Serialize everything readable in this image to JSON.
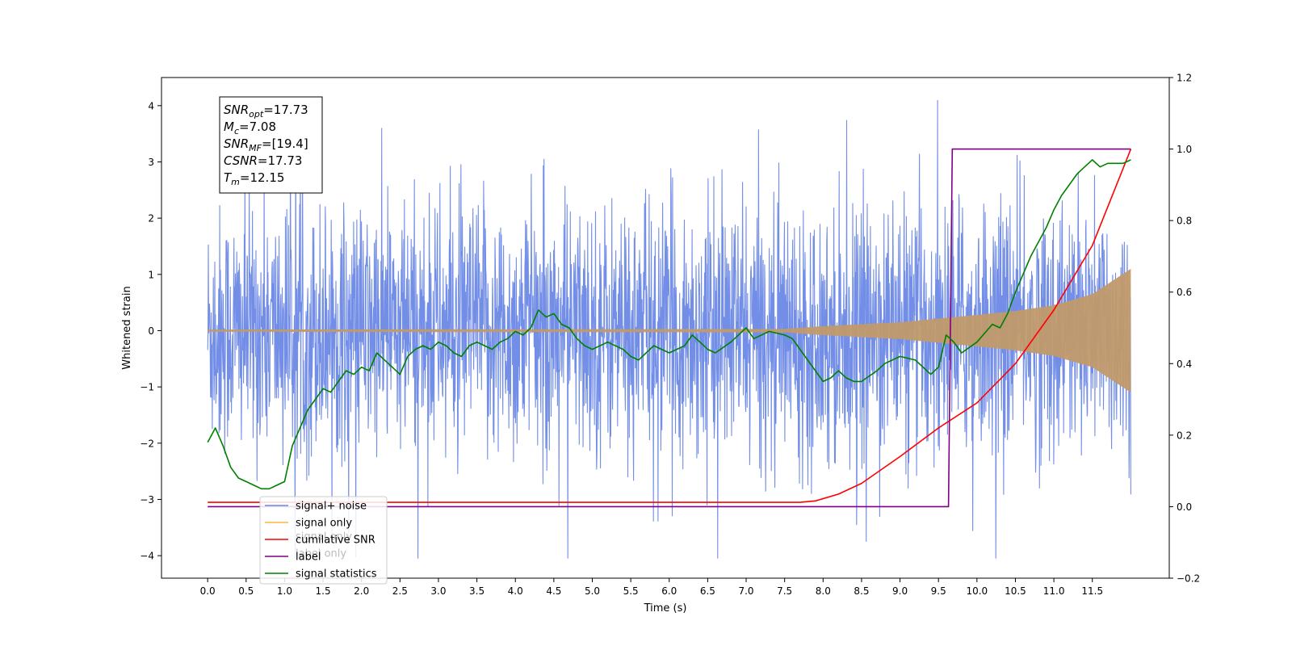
{
  "chart_data": {
    "type": "line",
    "xlabel": "Time (s)",
    "ylabel_left": "Whitened strain",
    "ylabel_right": "",
    "xlim": [
      -0.6,
      12.5
    ],
    "ylim_left": [
      -4.4,
      4.5
    ],
    "ylim_right": [
      -0.2,
      1.2
    ],
    "x_ticks": [
      "0.0",
      "0.5",
      "1.0",
      "1.5",
      "2.0",
      "2.5",
      "3.0",
      "3.5",
      "4.0",
      "4.5",
      "5.0",
      "5.5",
      "6.0",
      "6.5",
      "7.0",
      "7.5",
      "8.0",
      "8.5",
      "9.0",
      "9.5",
      "10.0",
      "10.5",
      "11.0",
      "11.5"
    ],
    "y_ticks_left": [
      "4",
      "3",
      "2",
      "1",
      "0",
      "−1",
      "−2",
      "−3",
      "−4"
    ],
    "y_ticks_right": [
      "1.2",
      "1.0",
      "0.8",
      "0.6",
      "0.4",
      "0.2",
      "0.0",
      "−0.2"
    ],
    "annotation": {
      "lines": [
        {
          "base": "SNR",
          "sub": "opt",
          "value": "=17.73"
        },
        {
          "base": "M",
          "sub": "c",
          "value": "=7.08"
        },
        {
          "base": "SNR",
          "sub": "MF",
          "value": "=[19.4]"
        },
        {
          "base": "CSNR",
          "sub": "",
          "value": "=17.73"
        },
        {
          "base": "T",
          "sub": "m",
          "value": "=12.15"
        }
      ]
    },
    "legend": {
      "position": "lower-left",
      "entries": [
        {
          "label": "signal+ noise",
          "color": "#6b88e6"
        },
        {
          "label": "signal only",
          "color": "#ffb347"
        },
        {
          "label": "cumilative SNR",
          "color": "#ff0000"
        },
        {
          "label": "label",
          "color": "#800080"
        },
        {
          "label": "signal statistics",
          "color": "#008000"
        }
      ],
      "hidden_text": [
        "signal only",
        "label only"
      ]
    },
    "series": [
      {
        "name": "signal+ noise",
        "axis": "left",
        "color": "#6b88e6",
        "description": "white noise envelope, amplitude ~2.8",
        "t_start": 0.0,
        "t_end": 12.0
      },
      {
        "name": "signal only",
        "axis": "left",
        "color": "#c19a6b",
        "envelope_points": [
          [
            0.0,
            0.02
          ],
          [
            7.5,
            0.03
          ],
          [
            8.0,
            0.08
          ],
          [
            9.0,
            0.15
          ],
          [
            10.0,
            0.28
          ],
          [
            10.5,
            0.35
          ],
          [
            11.0,
            0.45
          ],
          [
            11.5,
            0.65
          ],
          [
            12.0,
            1.1
          ]
        ]
      },
      {
        "name": "cumilative SNR",
        "axis": "right",
        "color": "#ff0000",
        "points": [
          [
            0.0,
            0.012
          ],
          [
            7.7,
            0.012
          ],
          [
            7.9,
            0.016
          ],
          [
            8.2,
            0.035
          ],
          [
            8.5,
            0.065
          ],
          [
            9.0,
            0.14
          ],
          [
            9.5,
            0.22
          ],
          [
            10.0,
            0.29
          ],
          [
            10.5,
            0.4
          ],
          [
            11.0,
            0.55
          ],
          [
            11.5,
            0.73
          ],
          [
            12.0,
            1.0
          ]
        ]
      },
      {
        "name": "label",
        "axis": "right",
        "color": "#800080",
        "points": [
          [
            0.0,
            0.0
          ],
          [
            9.63,
            0.0
          ],
          [
            9.68,
            1.0
          ],
          [
            12.0,
            1.0
          ]
        ]
      },
      {
        "name": "signal statistics",
        "axis": "right",
        "color": "#008000",
        "points": [
          [
            0.0,
            0.18
          ],
          [
            0.1,
            0.22
          ],
          [
            0.2,
            0.17
          ],
          [
            0.3,
            0.11
          ],
          [
            0.4,
            0.08
          ],
          [
            0.5,
            0.07
          ],
          [
            0.6,
            0.06
          ],
          [
            0.7,
            0.05
          ],
          [
            0.8,
            0.05
          ],
          [
            0.9,
            0.06
          ],
          [
            1.0,
            0.07
          ],
          [
            1.05,
            0.12
          ],
          [
            1.1,
            0.17
          ],
          [
            1.2,
            0.22
          ],
          [
            1.3,
            0.27
          ],
          [
            1.4,
            0.3
          ],
          [
            1.5,
            0.33
          ],
          [
            1.6,
            0.32
          ],
          [
            1.7,
            0.35
          ],
          [
            1.8,
            0.38
          ],
          [
            1.9,
            0.37
          ],
          [
            2.0,
            0.39
          ],
          [
            2.1,
            0.38
          ],
          [
            2.2,
            0.43
          ],
          [
            2.3,
            0.41
          ],
          [
            2.4,
            0.39
          ],
          [
            2.5,
            0.37
          ],
          [
            2.6,
            0.42
          ],
          [
            2.7,
            0.44
          ],
          [
            2.8,
            0.45
          ],
          [
            2.9,
            0.44
          ],
          [
            3.0,
            0.46
          ],
          [
            3.1,
            0.45
          ],
          [
            3.2,
            0.43
          ],
          [
            3.3,
            0.42
          ],
          [
            3.4,
            0.45
          ],
          [
            3.5,
            0.46
          ],
          [
            3.6,
            0.45
          ],
          [
            3.7,
            0.44
          ],
          [
            3.8,
            0.46
          ],
          [
            3.9,
            0.47
          ],
          [
            4.0,
            0.49
          ],
          [
            4.1,
            0.48
          ],
          [
            4.2,
            0.5
          ],
          [
            4.3,
            0.55
          ],
          [
            4.4,
            0.53
          ],
          [
            4.5,
            0.54
          ],
          [
            4.6,
            0.51
          ],
          [
            4.7,
            0.5
          ],
          [
            4.8,
            0.47
          ],
          [
            4.9,
            0.45
          ],
          [
            5.0,
            0.44
          ],
          [
            5.2,
            0.46
          ],
          [
            5.4,
            0.44
          ],
          [
            5.5,
            0.42
          ],
          [
            5.6,
            0.41
          ],
          [
            5.7,
            0.43
          ],
          [
            5.8,
            0.45
          ],
          [
            6.0,
            0.43
          ],
          [
            6.2,
            0.45
          ],
          [
            6.3,
            0.48
          ],
          [
            6.4,
            0.46
          ],
          [
            6.5,
            0.44
          ],
          [
            6.6,
            0.43
          ],
          [
            6.8,
            0.46
          ],
          [
            6.9,
            0.48
          ],
          [
            7.0,
            0.5
          ],
          [
            7.1,
            0.47
          ],
          [
            7.3,
            0.49
          ],
          [
            7.5,
            0.48
          ],
          [
            7.6,
            0.47
          ],
          [
            7.7,
            0.44
          ],
          [
            7.8,
            0.41
          ],
          [
            7.9,
            0.38
          ],
          [
            8.0,
            0.35
          ],
          [
            8.1,
            0.36
          ],
          [
            8.2,
            0.38
          ],
          [
            8.3,
            0.36
          ],
          [
            8.4,
            0.35
          ],
          [
            8.5,
            0.35
          ],
          [
            8.7,
            0.38
          ],
          [
            8.8,
            0.4
          ],
          [
            8.9,
            0.41
          ],
          [
            9.0,
            0.42
          ],
          [
            9.2,
            0.41
          ],
          [
            9.3,
            0.39
          ],
          [
            9.4,
            0.37
          ],
          [
            9.5,
            0.39
          ],
          [
            9.6,
            0.48
          ],
          [
            9.7,
            0.46
          ],
          [
            9.8,
            0.43
          ],
          [
            10.0,
            0.46
          ],
          [
            10.2,
            0.51
          ],
          [
            10.3,
            0.5
          ],
          [
            10.4,
            0.54
          ],
          [
            10.5,
            0.6
          ],
          [
            10.6,
            0.65
          ],
          [
            10.7,
            0.7
          ],
          [
            10.8,
            0.74
          ],
          [
            10.9,
            0.78
          ],
          [
            11.0,
            0.83
          ],
          [
            11.1,
            0.87
          ],
          [
            11.2,
            0.9
          ],
          [
            11.3,
            0.93
          ],
          [
            11.4,
            0.95
          ],
          [
            11.5,
            0.97
          ],
          [
            11.6,
            0.95
          ],
          [
            11.7,
            0.96
          ],
          [
            11.8,
            0.96
          ],
          [
            11.9,
            0.96
          ],
          [
            12.0,
            0.97
          ]
        ]
      }
    ]
  }
}
